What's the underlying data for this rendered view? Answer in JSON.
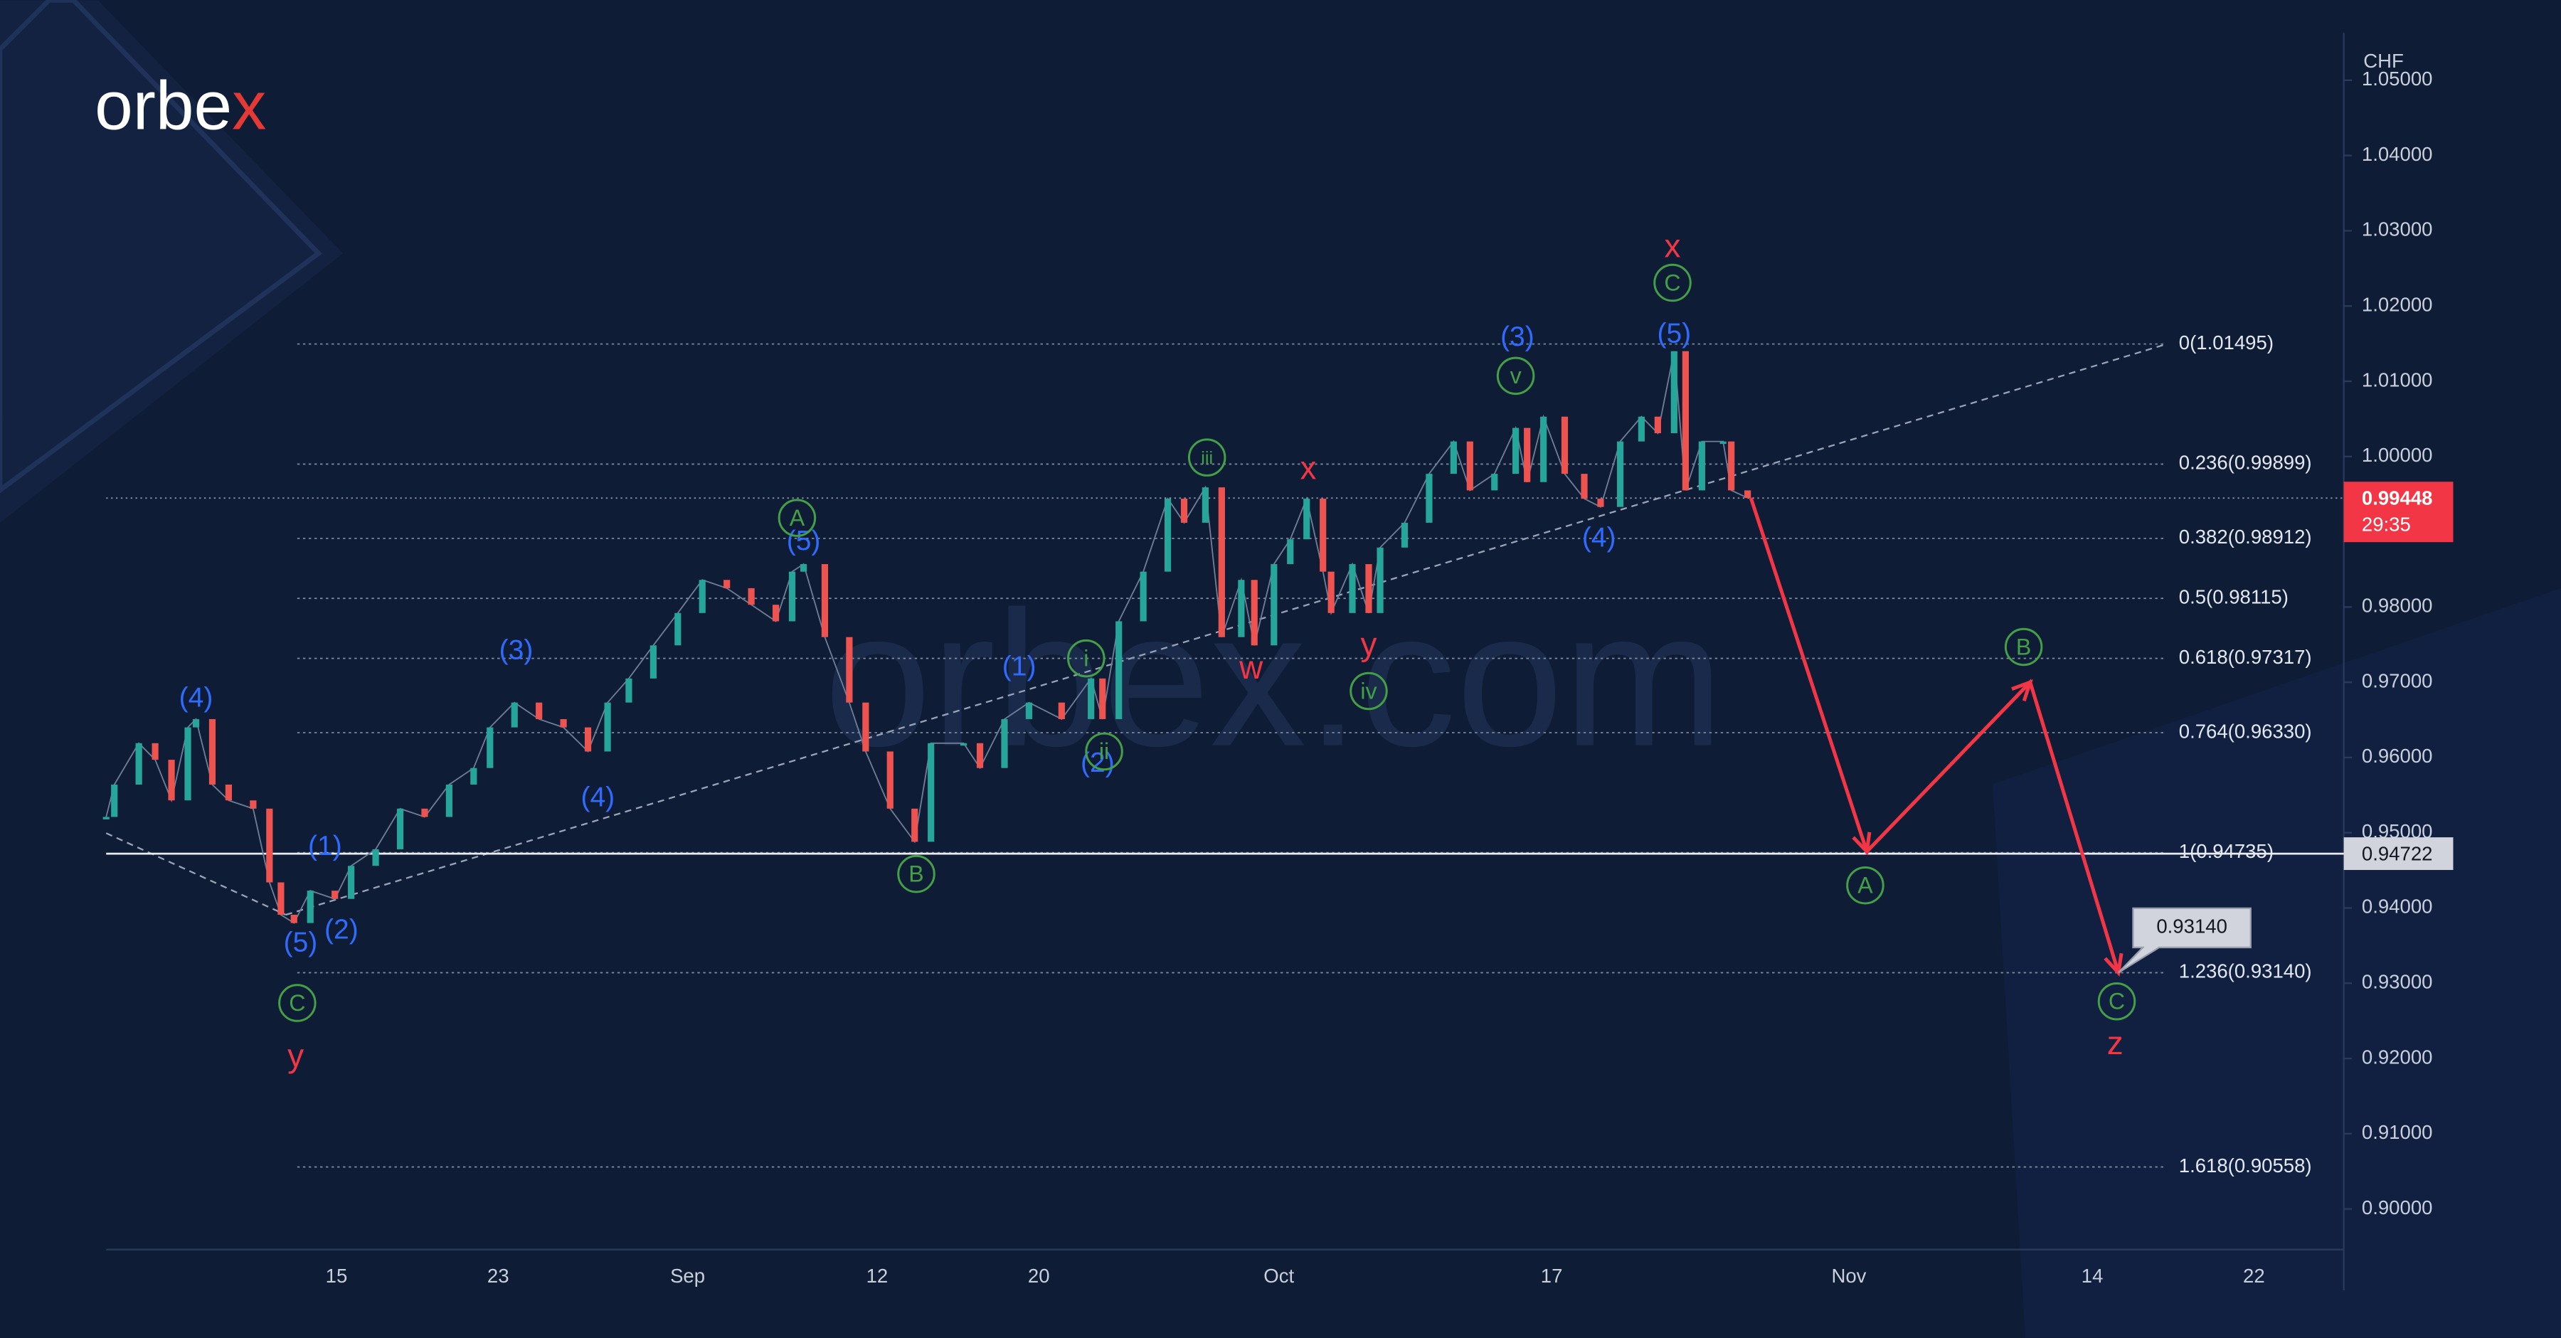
{
  "logo": {
    "text": "orbe",
    "accent": "x"
  },
  "watermark": "orbex.com",
  "chart_data": {
    "type": "line",
    "currency": "CHF",
    "up_color": "#26a69a",
    "down_color": "#ef5350",
    "values": [
      0.9521,
      0.9564,
      0.9619,
      0.9597,
      0.9543,
      0.964,
      0.9651,
      0.9564,
      0.9543,
      0.9532,
      0.9434,
      0.9391,
      0.938,
      0.9423,
      0.9412,
      0.9456,
      0.9478,
      0.9532,
      0.9521,
      0.9564,
      0.9586,
      0.964,
      0.9673,
      0.9651,
      0.964,
      0.9608,
      0.9673,
      0.9705,
      0.9749,
      0.9792,
      0.9836,
      0.9825,
      0.9803,
      0.9781,
      0.9847,
      0.9857,
      0.976,
      0.9673,
      0.9608,
      0.9532,
      0.9488,
      0.9619,
      0.9619,
      0.9586,
      0.9651,
      0.9673,
      0.9651,
      0.9705,
      0.9651,
      0.9781,
      0.9847,
      0.9944,
      0.9912,
      0.9959,
      0.976,
      0.9836,
      0.9749,
      0.9857,
      0.989,
      0.9944,
      0.9847,
      0.9792,
      0.9857,
      0.9792,
      0.9879,
      0.9912,
      0.9977,
      1.002,
      0.9955,
      0.9977,
      1.0038,
      0.9966,
      1.0053,
      0.9977,
      0.9944,
      0.9933,
      1.002,
      1.0053,
      1.0031,
      1.014,
      0.9955,
      1.002,
      1.002,
      0.9955,
      0.9945
    ],
    "xticks": [
      "15",
      "23",
      "Sep",
      "12",
      "20",
      "Oct",
      "17",
      "Nov",
      "14",
      "22"
    ],
    "ylim": [
      0.8946,
      1.0563
    ],
    "yticks": [
      {
        "value": 0.9,
        "label": "0.90000"
      },
      {
        "value": 0.91,
        "label": "0.91000"
      },
      {
        "value": 0.92,
        "label": "0.92000"
      },
      {
        "value": 0.93,
        "label": "0.93000"
      },
      {
        "value": 0.94,
        "label": "0.94000"
      },
      {
        "value": 0.95,
        "label": "0.95000"
      },
      {
        "value": 0.96,
        "label": "0.96000"
      },
      {
        "value": 0.97,
        "label": "0.97000"
      },
      {
        "value": 0.98,
        "label": "0.98000"
      },
      {
        "value": 0.99,
        "label": "0.99000"
      },
      {
        "value": 1.0,
        "label": "1.00000"
      },
      {
        "value": 1.01,
        "label": "1.01000"
      },
      {
        "value": 1.02,
        "label": "1.02000"
      },
      {
        "value": 1.03,
        "label": "1.03000"
      },
      {
        "value": 1.04,
        "label": "1.04000"
      },
      {
        "value": 1.05,
        "label": "1.05000"
      }
    ],
    "fib_levels": [
      {
        "value": 1.01495,
        "label": "0(1.01495)"
      },
      {
        "value": 0.99899,
        "label": "0.236(0.99899)"
      },
      {
        "value": 0.98912,
        "label": "0.382(0.98912)"
      },
      {
        "value": 0.98115,
        "label": "0.5(0.98115)"
      },
      {
        "value": 0.97317,
        "label": "0.618(0.97317)"
      },
      {
        "value": 0.9633,
        "label": "0.764(0.96330)"
      },
      {
        "value": 0.94735,
        "label": "1(0.94735)"
      },
      {
        "value": 0.9314,
        "label": "1.236(0.93140)"
      },
      {
        "value": 0.90558,
        "label": "1.618(0.90558)"
      }
    ],
    "projection": {
      "color": "#f23645",
      "values": [
        0.9945,
        0.9475,
        0.97,
        0.9314
      ]
    },
    "last_price": {
      "value": 0.99448,
      "label": "0.99448",
      "countdown": "29:35",
      "color": "#f23645"
    },
    "level_price": {
      "value": 0.94722,
      "label": "0.94722"
    },
    "target": {
      "value": 0.9314,
      "label": "0.93140"
    },
    "label_colors": {
      "blue": "#2f6bff",
      "green": "#43a047",
      "red": "#f23645"
    },
    "wave_labels": [
      {
        "text": "(4)",
        "style": "blue"
      },
      {
        "text": "(1)",
        "style": "blue"
      },
      {
        "text": "(5)",
        "style": "blue"
      },
      {
        "text": "(2)",
        "style": "blue"
      },
      {
        "text": "(3)",
        "style": "blue"
      },
      {
        "text": "(4)",
        "style": "blue"
      },
      {
        "text": "(5)",
        "style": "blue"
      },
      {
        "text": "(1)",
        "style": "blue"
      },
      {
        "text": "(2)",
        "style": "blue"
      },
      {
        "text": "(3)",
        "style": "blue"
      },
      {
        "text": "(4)",
        "style": "blue"
      },
      {
        "text": "(5)",
        "style": "blue"
      },
      {
        "text": "C",
        "style": "green"
      },
      {
        "text": "A",
        "style": "green"
      },
      {
        "text": "B",
        "style": "green"
      },
      {
        "text": "i",
        "style": "green"
      },
      {
        "text": "ii",
        "style": "green"
      },
      {
        "text": "iii",
        "style": "green"
      },
      {
        "text": "iv",
        "style": "green"
      },
      {
        "text": "v",
        "style": "green"
      },
      {
        "text": "C",
        "style": "green"
      },
      {
        "text": "A",
        "style": "green"
      },
      {
        "text": "B",
        "style": "green"
      },
      {
        "text": "C",
        "style": "green"
      },
      {
        "text": "y",
        "style": "red"
      },
      {
        "text": "w",
        "style": "red"
      },
      {
        "text": "x",
        "style": "red"
      },
      {
        "text": "y",
        "style": "red"
      },
      {
        "text": "x",
        "style": "red"
      },
      {
        "text": "z",
        "style": "red"
      }
    ]
  }
}
